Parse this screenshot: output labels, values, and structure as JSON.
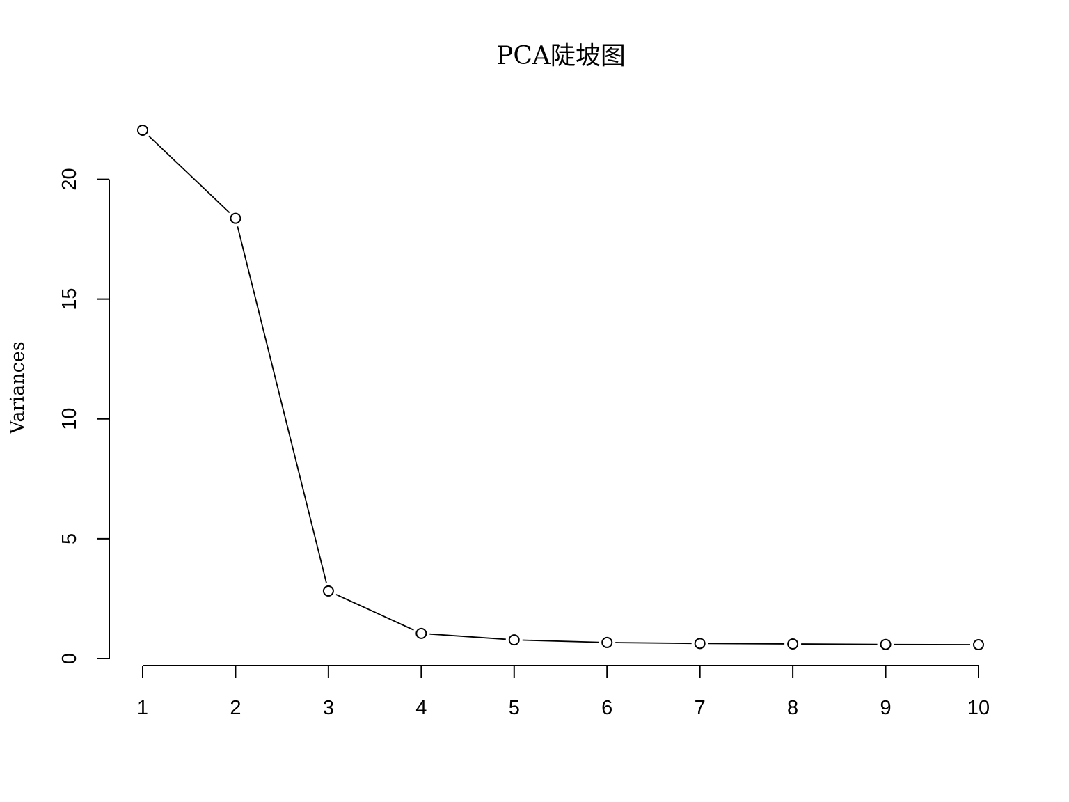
{
  "chart_data": {
    "type": "line",
    "title": "PCA陡坡图",
    "xlabel": "",
    "ylabel": "Variances",
    "x": [
      1,
      2,
      3,
      4,
      5,
      6,
      7,
      8,
      9,
      10
    ],
    "x_tick_labels": [
      "1",
      "2",
      "3",
      "4",
      "5",
      "6",
      "7",
      "8",
      "9",
      "10"
    ],
    "y_ticks": [
      0,
      5,
      10,
      15,
      20
    ],
    "y_tick_labels": [
      "0",
      "5",
      "10",
      "15",
      "20"
    ],
    "series": [
      {
        "values": [
          22.05,
          18.37,
          2.82,
          1.05,
          0.78,
          0.67,
          0.63,
          0.61,
          0.59,
          0.58
        ]
      }
    ],
    "ylim": [
      0,
      22.05
    ],
    "xlim": [
      1,
      10
    ],
    "marker": "open-circle",
    "grid": false,
    "legend": "none"
  }
}
